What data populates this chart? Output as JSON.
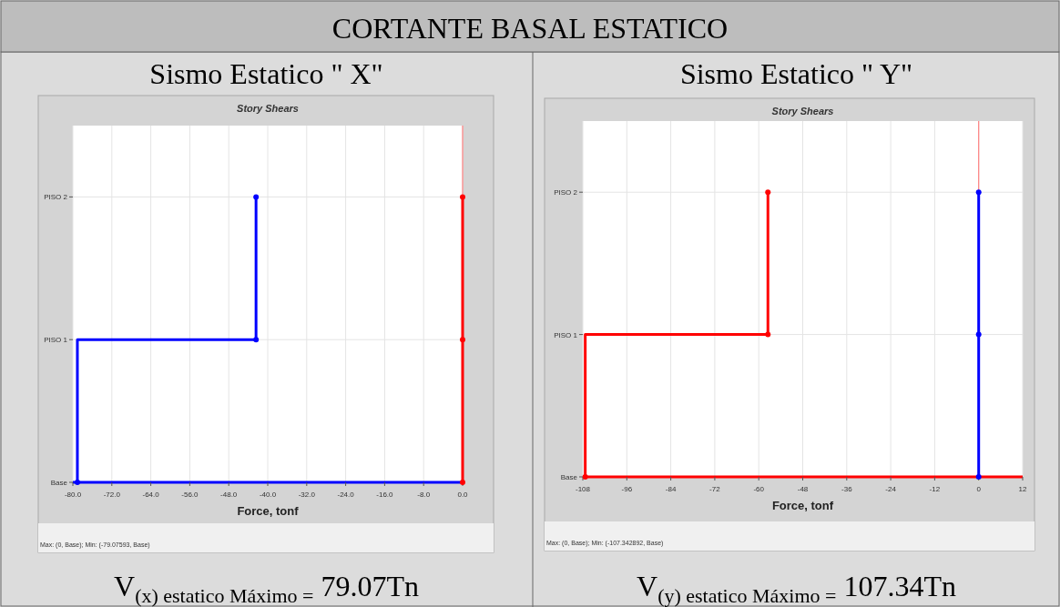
{
  "chart_data": [
    {
      "type": "step",
      "orientation": "horizontal",
      "title": "Sismo Estatico \" X\"",
      "subtitle": "Story Shears",
      "xlabel": "Force, tonf",
      "categories": [
        "PISO 2",
        "PISO 1",
        "Base"
      ],
      "xlim": [
        -80,
        0
      ],
      "xticks": [
        {
          "value": -80,
          "label": "-80.0"
        },
        {
          "value": -72,
          "label": "-72.0"
        },
        {
          "value": -64,
          "label": "-64.0"
        },
        {
          "value": -56,
          "label": "-56.0"
        },
        {
          "value": -48,
          "label": "-48.0"
        },
        {
          "value": -40,
          "label": "-40.0"
        },
        {
          "value": -32,
          "label": "-32.0"
        },
        {
          "value": -24,
          "label": "-24.0"
        },
        {
          "value": -16,
          "label": "-16.0"
        },
        {
          "value": -8,
          "label": "-8.0"
        },
        {
          "value": 0,
          "label": "0.0"
        }
      ],
      "grid": true,
      "marker": "circle",
      "line_style": "solid",
      "ref_lines": [
        {
          "axis": "x",
          "value": 0,
          "color": "#ff8080"
        },
        {
          "axis": "y",
          "value": "Base",
          "color": "#0000ff"
        }
      ],
      "series": [
        {
          "color": "#0000ff",
          "values": [
            -42.4,
            -42.4,
            -79.07
          ]
        },
        {
          "color": "#ff0000",
          "values": [
            0,
            0,
            0
          ]
        }
      ],
      "annotations": [
        "CORTANTE BASAL ESTATICO",
        "Max: (0, Base);  Min: (-79.07593, Base)",
        "V$_{(x) estatico Máximo =}$ 79.07Tn"
      ]
    },
    {
      "type": "step",
      "orientation": "horizontal",
      "title": "Sismo Estatico \" Y\"",
      "subtitle": "Story Shears",
      "xlabel": "Force, tonf",
      "categories": [
        "PISO 2",
        "PISO 1",
        "Base"
      ],
      "xlim": [
        -108,
        12
      ],
      "xticks": [
        -108,
        -96,
        -84,
        -72,
        -60,
        -48,
        -36,
        -24,
        -12,
        0,
        12
      ],
      "grid": true,
      "marker": "circle",
      "line_style": "solid",
      "ref_lines": [
        {
          "axis": "x",
          "value": 0,
          "color": "#ff8080"
        },
        {
          "axis": "y",
          "value": "Base",
          "color": "#ff0000"
        }
      ],
      "series": [
        {
          "color": "#0000ff",
          "values": [
            0,
            0,
            0
          ]
        },
        {
          "color": "#ff0000",
          "values": [
            -57.5,
            -57.5,
            -107.34
          ]
        }
      ],
      "annotations": [
        "Max: (0, Base);  Min: (-107.342892, Base)",
        "V$_{(y) estatico Máximo =}$ 107.34Tn"
      ]
    }
  ]
}
